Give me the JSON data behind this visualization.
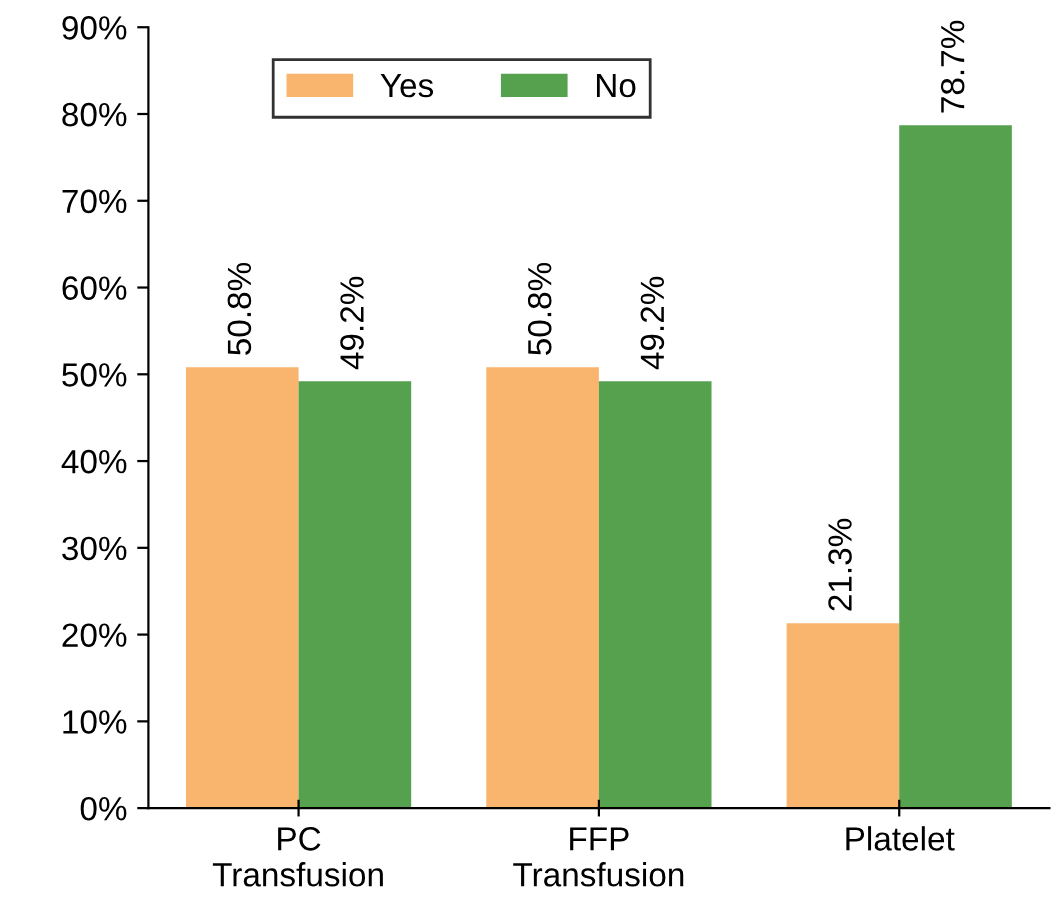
{
  "chart_data": {
    "type": "bar",
    "categories": [
      "PC\nTransfusion",
      "FFP\nTransfusion",
      "Platelet"
    ],
    "series": [
      {
        "name": "Yes",
        "color": "#f9b56e",
        "values": [
          50.8,
          50.8,
          21.3
        ],
        "value_labels": [
          "50.8%",
          "50.8%",
          "21.3%"
        ]
      },
      {
        "name": "No",
        "color": "#55a14e",
        "values": [
          49.2,
          49.2,
          78.7
        ],
        "value_labels": [
          "49.2%",
          "49.2%",
          "78.7%"
        ]
      }
    ],
    "ylim": [
      0,
      90
    ],
    "yticks": [
      {
        "value": 0,
        "label": "0%"
      },
      {
        "value": 10,
        "label": "10%"
      },
      {
        "value": 20,
        "label": "20%"
      },
      {
        "value": 30,
        "label": "30%"
      },
      {
        "value": 40,
        "label": "40%"
      },
      {
        "value": 50,
        "label": "50%"
      },
      {
        "value": 60,
        "label": "60%"
      },
      {
        "value": 70,
        "label": "70%"
      },
      {
        "value": 80,
        "label": "80%"
      },
      {
        "value": 90,
        "label": "90%"
      }
    ],
    "legend": "top left",
    "grid": false
  }
}
